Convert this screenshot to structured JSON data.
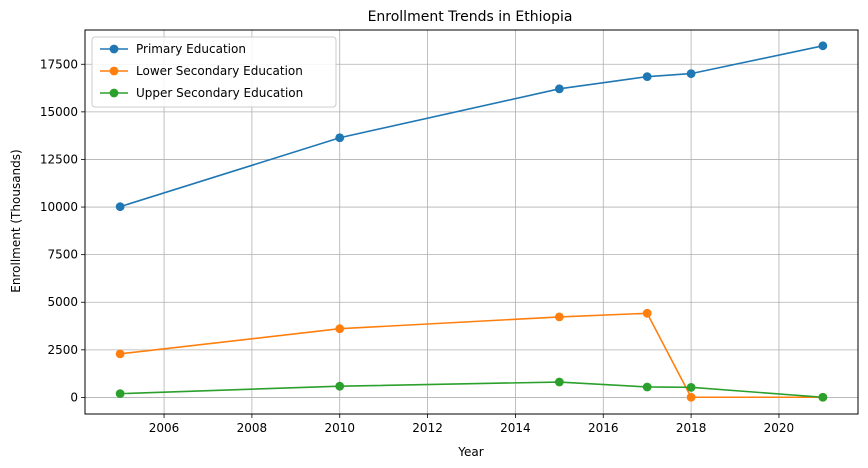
{
  "chart_data": {
    "type": "line",
    "title": "Enrollment Trends in Ethiopia",
    "xlabel": "Year",
    "ylabel": "Enrollment (Thousands)",
    "xlim": [
      2004.2,
      2021.8
    ],
    "ylim": [
      -870,
      19300
    ],
    "xticks": [
      2006,
      2008,
      2010,
      2012,
      2014,
      2016,
      2018,
      2020
    ],
    "yticks": [
      0,
      2500,
      5000,
      7500,
      10000,
      12500,
      15000,
      17500
    ],
    "grid": true,
    "legend_position": "top-left",
    "series": [
      {
        "name": "Primary Education",
        "color": "#1f77b4",
        "x": [
          2005,
          2010,
          2015,
          2017,
          2018,
          2021
        ],
        "y": [
          10020,
          13640,
          16210,
          16850,
          17010,
          18470
        ]
      },
      {
        "name": "Lower Secondary Education",
        "color": "#ff7f0e",
        "x": [
          2005,
          2010,
          2015,
          2017,
          2018,
          2021
        ],
        "y": [
          2290,
          3610,
          4230,
          4420,
          10,
          10
        ]
      },
      {
        "name": "Upper Secondary Education",
        "color": "#2ca02c",
        "x": [
          2005,
          2010,
          2015,
          2017,
          2018,
          2021
        ],
        "y": [
          200,
          590,
          810,
          550,
          530,
          10
        ]
      }
    ]
  }
}
